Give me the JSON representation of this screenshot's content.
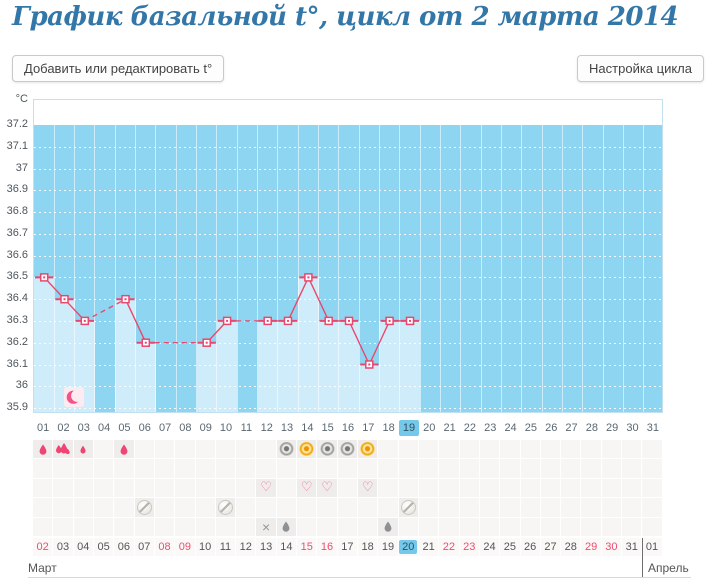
{
  "page": {
    "title": "График базальной t°, цикл от 2 марта 2014",
    "edit_button": "Добавить или редактировать t°",
    "settings_button": "Настройка цикла"
  },
  "chart_data": {
    "type": "line",
    "title": "График базальной t°, цикл от 2 марта 2014",
    "unit_label": "°C",
    "ylim": [
      35.9,
      37.2
    ],
    "y_tick_step": 0.1,
    "y_ticks": [
      "37.2",
      "37.1",
      "37",
      "36.9",
      "36.8",
      "36.7",
      "36.6",
      "36.5",
      "36.4",
      "36.3",
      "36.2",
      "36.1",
      "36",
      "35.9"
    ],
    "x_days": [
      "01",
      "02",
      "03",
      "04",
      "05",
      "06",
      "07",
      "08",
      "09",
      "10",
      "11",
      "12",
      "13",
      "14",
      "15",
      "16",
      "17",
      "18",
      "19",
      "20",
      "21",
      "22",
      "23",
      "24",
      "25",
      "26",
      "27",
      "28",
      "29",
      "30",
      "31"
    ],
    "current_cycle_day": 19,
    "grid": "dotted-white",
    "series": [
      {
        "name": "basal-temperature",
        "values": [
          36.5,
          36.4,
          36.3,
          null,
          36.4,
          36.2,
          null,
          null,
          36.2,
          36.3,
          null,
          36.3,
          36.3,
          36.5,
          36.3,
          36.3,
          36.1,
          36.3,
          36.3,
          null,
          null,
          null,
          null,
          null,
          null,
          null,
          null,
          null,
          null,
          null,
          null
        ]
      }
    ],
    "colors": {
      "line": "#e9486e",
      "marker_fill": "#ffffff",
      "column": "#cfecfa",
      "background_above": "#8ed5f1",
      "current_day_highlight": "#74c8ea",
      "weekend_date": "#ee4c71",
      "title_blue": "#3377a8"
    }
  },
  "plot_icons": [
    {
      "day": 2,
      "icon": "moon-crescent"
    }
  ],
  "icon_rows": [
    {
      "name": "menstruation-and-tests",
      "items": [
        {
          "day": 1,
          "icon": "droplet-red"
        },
        {
          "day": 2,
          "icon": "droplets-red-heavy"
        },
        {
          "day": 3,
          "icon": "droplet-red-small"
        },
        {
          "day": 5,
          "icon": "droplet-red"
        },
        {
          "day": 13,
          "icon": "test-circle-gray"
        },
        {
          "day": 14,
          "icon": "test-circle-yellow"
        },
        {
          "day": 15,
          "icon": "test-circle-gray"
        },
        {
          "day": 16,
          "icon": "test-circle-gray"
        },
        {
          "day": 17,
          "icon": "test-circle-yellow"
        }
      ]
    },
    {
      "name": "empty-row",
      "items": []
    },
    {
      "name": "intercourse",
      "items": [
        {
          "day": 12,
          "icon": "heart-pink"
        },
        {
          "day": 14,
          "icon": "heart-pink"
        },
        {
          "day": 15,
          "icon": "heart-pink"
        },
        {
          "day": 17,
          "icon": "heart-pink"
        }
      ]
    },
    {
      "name": "medication",
      "items": [
        {
          "day": 6,
          "icon": "pill"
        },
        {
          "day": 10,
          "icon": "pill"
        },
        {
          "day": 19,
          "icon": "pill"
        }
      ]
    },
    {
      "name": "symptoms",
      "items": [
        {
          "day": 12,
          "icon": "x-mark"
        },
        {
          "day": 13,
          "icon": "droplet-gray"
        },
        {
          "day": 18,
          "icon": "droplet-gray"
        }
      ]
    }
  ],
  "calendar": {
    "month_start_label": "Март",
    "month_end_label": "Апрель",
    "dates": [
      {
        "d": "02",
        "weekend": true
      },
      {
        "d": "03"
      },
      {
        "d": "04"
      },
      {
        "d": "05"
      },
      {
        "d": "06"
      },
      {
        "d": "07"
      },
      {
        "d": "08",
        "weekend": true
      },
      {
        "d": "09",
        "weekend": true
      },
      {
        "d": "10"
      },
      {
        "d": "11"
      },
      {
        "d": "12"
      },
      {
        "d": "13"
      },
      {
        "d": "14"
      },
      {
        "d": "15",
        "weekend": true
      },
      {
        "d": "16",
        "weekend": true
      },
      {
        "d": "17"
      },
      {
        "d": "18"
      },
      {
        "d": "19"
      },
      {
        "d": "20",
        "today": true
      },
      {
        "d": "21"
      },
      {
        "d": "22",
        "weekend": true
      },
      {
        "d": "23",
        "weekend": true
      },
      {
        "d": "24"
      },
      {
        "d": "25"
      },
      {
        "d": "26"
      },
      {
        "d": "27"
      },
      {
        "d": "28"
      },
      {
        "d": "29",
        "weekend": true
      },
      {
        "d": "30",
        "weekend": true
      },
      {
        "d": "31"
      },
      {
        "d": "01",
        "next_month": true
      }
    ]
  }
}
